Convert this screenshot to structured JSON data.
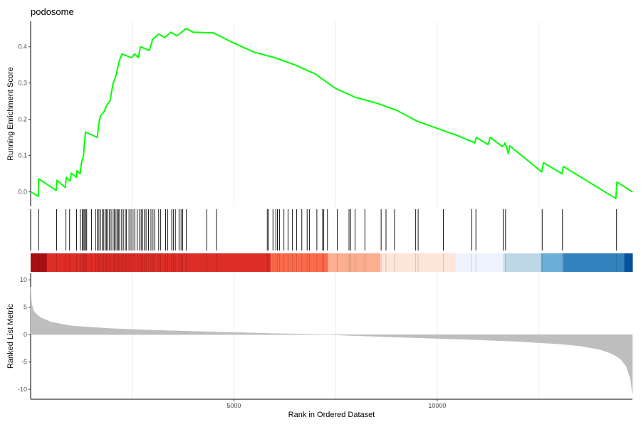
{
  "title": "podosome",
  "chart_data": {
    "type": "line",
    "title": "podosome",
    "xlabel": "Rank in Ordered Dataset",
    "xlim": [
      1,
      14800
    ],
    "xticks": [
      5000,
      10000
    ],
    "grid_x": [
      2500,
      5000,
      7500,
      10000,
      12500
    ],
    "grid": true,
    "colors": {
      "es_line": "#00ff00",
      "hit": "#000000",
      "metric_fill": "#bebebe"
    },
    "running_score": {
      "ylabel": "Running Enrichment Score",
      "ylim": [
        -0.04,
        0.47
      ],
      "yticks": [
        "0.0",
        "0.1",
        "0.2",
        "0.3",
        "0.4"
      ],
      "ytick_values": [
        0.0,
        0.1,
        0.2,
        0.3,
        0.4
      ],
      "points": [
        [
          1,
          0.0
        ],
        [
          190,
          -0.012
        ],
        [
          200,
          0.036
        ],
        [
          630,
          0.004
        ],
        [
          650,
          0.032
        ],
        [
          850,
          0.012
        ],
        [
          880,
          0.04
        ],
        [
          970,
          0.03
        ],
        [
          1000,
          0.052
        ],
        [
          1130,
          0.04
        ],
        [
          1140,
          0.058
        ],
        [
          1220,
          0.05
        ],
        [
          1250,
          0.08
        ],
        [
          1300,
          0.1
        ],
        [
          1350,
          0.165
        ],
        [
          1640,
          0.15
        ],
        [
          1680,
          0.19
        ],
        [
          1720,
          0.21
        ],
        [
          1800,
          0.22
        ],
        [
          1880,
          0.24
        ],
        [
          1950,
          0.25
        ],
        [
          2030,
          0.3
        ],
        [
          2100,
          0.32
        ],
        [
          2180,
          0.36
        ],
        [
          2250,
          0.38
        ],
        [
          2480,
          0.37
        ],
        [
          2560,
          0.38
        ],
        [
          2650,
          0.37
        ],
        [
          2700,
          0.4
        ],
        [
          2920,
          0.39
        ],
        [
          3000,
          0.42
        ],
        [
          3150,
          0.435
        ],
        [
          3300,
          0.425
        ],
        [
          3450,
          0.44
        ],
        [
          3600,
          0.43
        ],
        [
          3820,
          0.45
        ],
        [
          4000,
          0.44
        ],
        [
          4500,
          0.438
        ],
        [
          5000,
          0.41
        ],
        [
          5500,
          0.385
        ],
        [
          6000,
          0.37
        ],
        [
          6500,
          0.35
        ],
        [
          7000,
          0.325
        ],
        [
          7500,
          0.285
        ],
        [
          8000,
          0.26
        ],
        [
          8500,
          0.245
        ],
        [
          9000,
          0.225
        ],
        [
          9500,
          0.195
        ],
        [
          10000,
          0.175
        ],
        [
          10500,
          0.155
        ],
        [
          10920,
          0.135
        ],
        [
          10960,
          0.15
        ],
        [
          11250,
          0.13
        ],
        [
          11300,
          0.15
        ],
        [
          11600,
          0.125
        ],
        [
          11610,
          0.127
        ],
        [
          11650,
          0.13
        ],
        [
          11660,
          0.135
        ],
        [
          11700,
          0.125
        ],
        [
          11750,
          0.105
        ],
        [
          11780,
          0.127
        ],
        [
          12570,
          0.055
        ],
        [
          12610,
          0.08
        ],
        [
          13070,
          0.05
        ],
        [
          13100,
          0.07
        ],
        [
          14390,
          -0.018
        ],
        [
          14420,
          0.027
        ],
        [
          14800,
          0.0
        ]
      ]
    },
    "hits": [
      200,
      640,
      870,
      960,
      1130,
      1220,
      1270,
      1300,
      1330,
      1350,
      1380,
      1500,
      1600,
      1640,
      1680,
      1720,
      1760,
      1800,
      1840,
      1870,
      1900,
      1940,
      1980,
      2030,
      2060,
      2100,
      2130,
      2160,
      2190,
      2240,
      2280,
      2330,
      2360,
      2420,
      2470,
      2520,
      2560,
      2620,
      2680,
      2720,
      2760,
      2800,
      2840,
      2900,
      2960,
      3010,
      3050,
      3150,
      3200,
      3320,
      3370,
      3470,
      3510,
      3560,
      3650,
      3700,
      3740,
      3830,
      4330,
      4570,
      5820,
      5850,
      5960,
      6030,
      6070,
      6120,
      6230,
      6330,
      6440,
      6540,
      6670,
      6800,
      6860,
      7040,
      7180,
      7210,
      7300,
      7540,
      7830,
      7870,
      7980,
      8220,
      8620,
      8740,
      8950,
      9470,
      9530,
      10150,
      10850,
      10950,
      11620,
      11680,
      12580,
      13080,
      14410
    ],
    "rank_bar": {
      "segments": [
        {
          "from": 1,
          "to": 400,
          "color": "#a50f15"
        },
        {
          "from": 400,
          "to": 5900,
          "color": "#de2d26"
        },
        {
          "from": 5900,
          "to": 7300,
          "color": "#fb6a4a"
        },
        {
          "from": 7300,
          "to": 8600,
          "color": "#fcae91"
        },
        {
          "from": 8600,
          "to": 10450,
          "color": "#fee5d9"
        },
        {
          "from": 10450,
          "to": 11650,
          "color": "#eff3ff"
        },
        {
          "from": 11650,
          "to": 12550,
          "color": "#bdd7e7"
        },
        {
          "from": 12550,
          "to": 13100,
          "color": "#6baed6"
        },
        {
          "from": 13100,
          "to": 14600,
          "color": "#3182bd"
        },
        {
          "from": 14600,
          "to": 14800,
          "color": "#08519c"
        }
      ]
    },
    "ranked_metric": {
      "ylabel": "Ranked List Metric",
      "ylim": [
        -11.8,
        11.2
      ],
      "yticks": [
        "10",
        "5",
        "0",
        "-5",
        "-10"
      ],
      "ytick_values": [
        10,
        5,
        0,
        -5,
        -10
      ],
      "curve": [
        [
          1,
          8.7
        ],
        [
          20,
          6.0
        ],
        [
          60,
          4.6
        ],
        [
          120,
          3.9
        ],
        [
          250,
          3.1
        ],
        [
          500,
          2.3
        ],
        [
          1000,
          1.6
        ],
        [
          2000,
          1.1
        ],
        [
          3000,
          0.8
        ],
        [
          4000,
          0.6
        ],
        [
          5000,
          0.4
        ],
        [
          6000,
          0.2
        ],
        [
          7000,
          0.05
        ],
        [
          7300,
          0.0
        ],
        [
          8000,
          -0.2
        ],
        [
          9000,
          -0.45
        ],
        [
          10000,
          -0.7
        ],
        [
          11000,
          -0.95
        ],
        [
          12000,
          -1.25
        ],
        [
          13000,
          -1.7
        ],
        [
          13500,
          -2.05
        ],
        [
          14000,
          -2.7
        ],
        [
          14300,
          -3.5
        ],
        [
          14500,
          -4.4
        ],
        [
          14650,
          -5.8
        ],
        [
          14750,
          -8.0
        ],
        [
          14800,
          -10.8
        ]
      ]
    }
  }
}
